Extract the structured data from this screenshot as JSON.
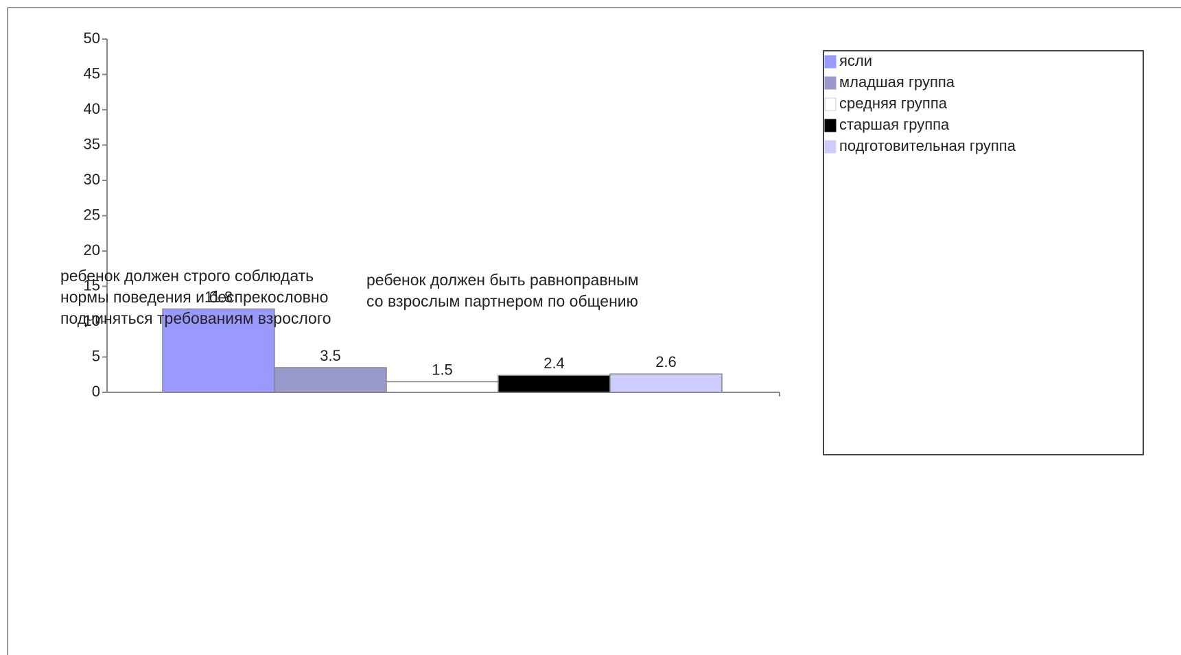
{
  "chart_data": {
    "type": "bar",
    "categories": [
      "ребенок должен строго соблюдать нормы поведения и беспрекословно подчиняться требованиям взрослого",
      "ребенок должен быть равноправным со взрослым партнером по общению"
    ],
    "series": [
      {
        "name": "ясли",
        "color": "#9999ff",
        "values": [
          11.8,
          null
        ]
      },
      {
        "name": "младшая группа",
        "color": "#9999cc",
        "values": [
          3.5,
          null
        ]
      },
      {
        "name": "средняя группа",
        "color": "#ffffff",
        "values": [
          1.5,
          null
        ]
      },
      {
        "name": "старшая группа",
        "color": "#000000",
        "values": [
          2.4,
          null
        ]
      },
      {
        "name": "подготовительная группа",
        "color": "#ccccff",
        "values": [
          2.6,
          null
        ]
      }
    ],
    "ylim": [
      0,
      50
    ],
    "yticks": [
      0,
      5,
      10,
      15,
      20,
      25,
      30,
      35,
      40,
      45,
      50
    ],
    "legend": "right"
  }
}
